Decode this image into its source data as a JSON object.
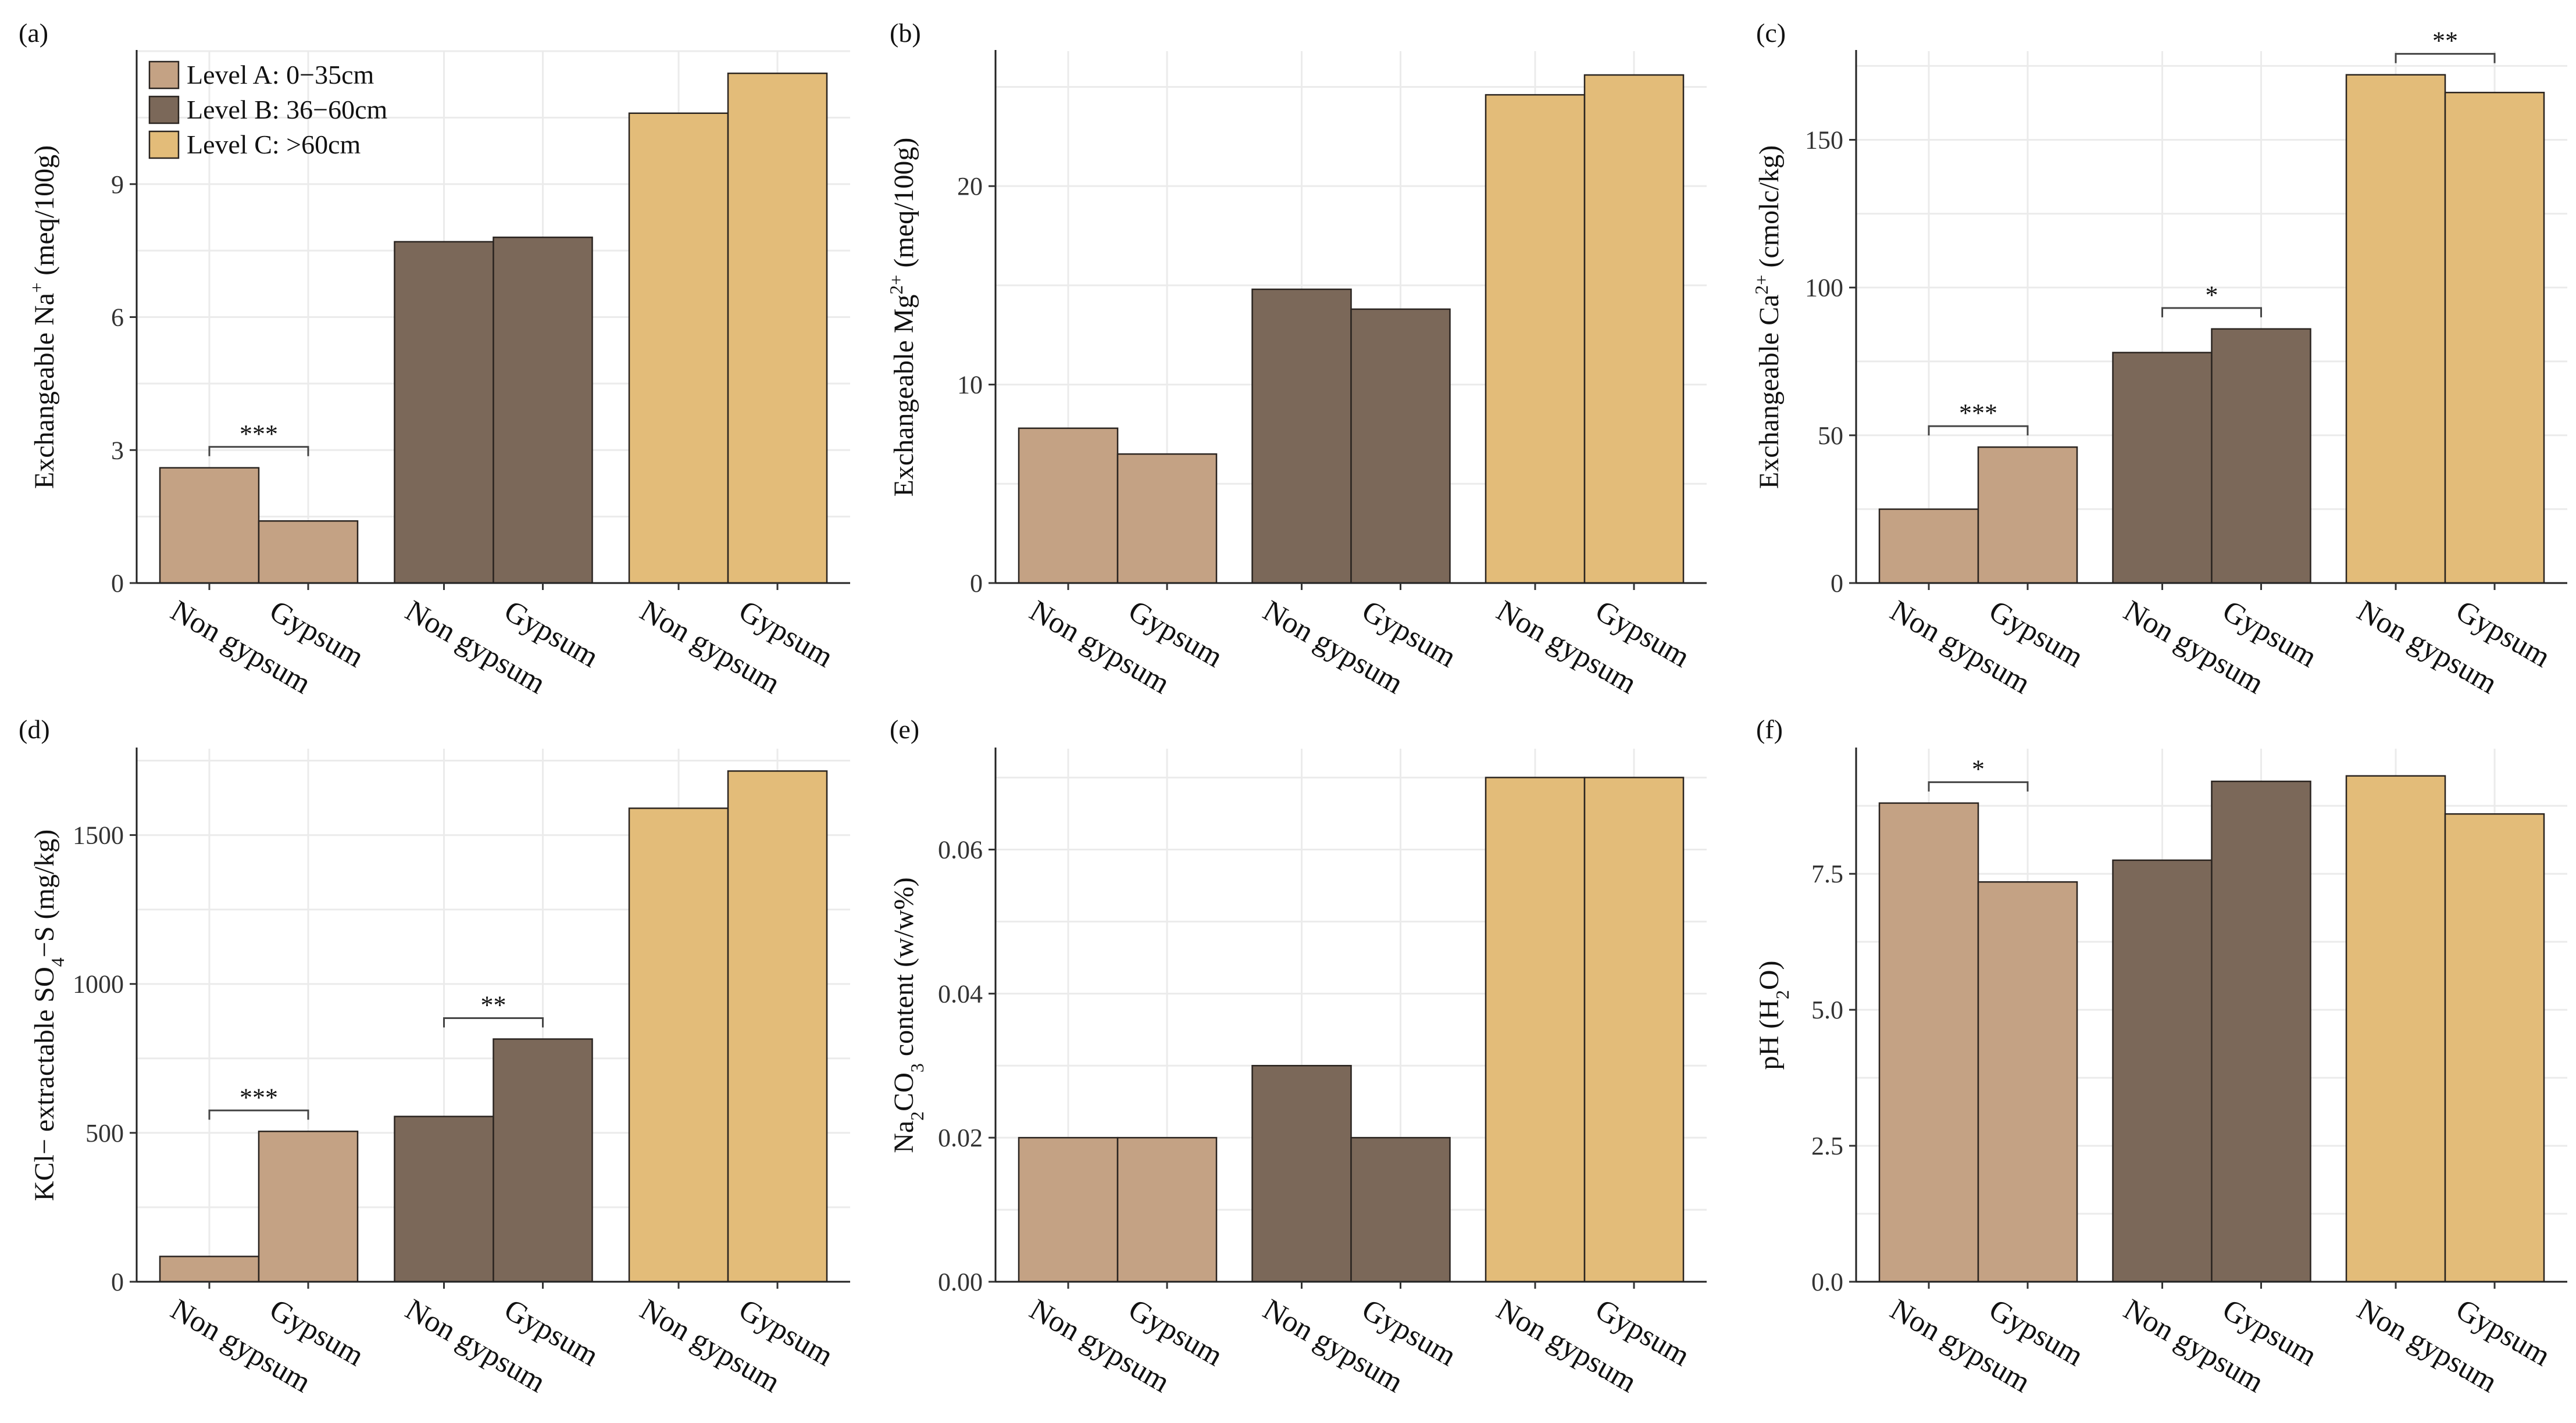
{
  "colors": {
    "level_a": "#c4a284",
    "level_b": "#7b6859",
    "level_c": "#e3bc79"
  },
  "chart_data": [
    {
      "panel": "(a)",
      "type": "bar",
      "ylabel_parts": [
        "Exchangeable Na",
        "+",
        " (meq/100g)"
      ],
      "ylim": [
        0,
        12
      ],
      "yticks": [
        0,
        3,
        6,
        9
      ],
      "categories": [
        "Non gypsum",
        "Gypsum",
        "Non gypsum",
        "Gypsum",
        "Non gypsum",
        "Gypsum"
      ],
      "groups": [
        "Level A",
        "Level A",
        "Level B",
        "Level B",
        "Level C",
        "Level C"
      ],
      "values": [
        2.6,
        1.4,
        7.7,
        7.8,
        10.6,
        11.5
      ],
      "significance": [
        {
          "group": 0,
          "label": "***"
        }
      ],
      "legend": [
        {
          "group": "Level A",
          "label": "Level A: 0−35cm"
        },
        {
          "group": "Level B",
          "label": "Level B: 36−60cm"
        },
        {
          "group": "Level C",
          "label": "Level C: >60cm"
        }
      ]
    },
    {
      "panel": "(b)",
      "type": "bar",
      "ylabel_parts": [
        "Exchangeable Mg",
        "2+",
        " (meq/100g)"
      ],
      "ylim": [
        0,
        26.8
      ],
      "yticks": [
        0,
        10,
        20
      ],
      "categories": [
        "Non gypsum",
        "Gypsum",
        "Non gypsum",
        "Gypsum",
        "Non gypsum",
        "Gypsum"
      ],
      "groups": [
        "Level A",
        "Level A",
        "Level B",
        "Level B",
        "Level C",
        "Level C"
      ],
      "values": [
        7.8,
        6.5,
        14.8,
        13.8,
        24.6,
        25.6
      ],
      "significance": []
    },
    {
      "panel": "(c)",
      "type": "bar",
      "ylabel_parts": [
        "Exchangeable Ca",
        "2+",
        " (cmolc/kg)"
      ],
      "ylim": [
        0,
        180
      ],
      "yticks": [
        0,
        50,
        100,
        150
      ],
      "categories": [
        "Non gypsum",
        "Gypsum",
        "Non gypsum",
        "Gypsum",
        "Non gypsum",
        "Gypsum"
      ],
      "groups": [
        "Level A",
        "Level A",
        "Level B",
        "Level B",
        "Level C",
        "Level C"
      ],
      "values": [
        25,
        46,
        78,
        86,
        172,
        166
      ],
      "significance": [
        {
          "group": 0,
          "label": "***"
        },
        {
          "group": 1,
          "label": "*"
        },
        {
          "group": 2,
          "label": "**"
        }
      ]
    },
    {
      "panel": "(d)",
      "type": "bar",
      "ylabel_parts": [
        "KCl− extractable SO",
        "4",
        "−S (mg/kg)"
      ],
      "ylabel_sub": true,
      "ylim": [
        0,
        1790
      ],
      "yticks": [
        0,
        500,
        1000,
        1500
      ],
      "categories": [
        "Non gypsum",
        "Gypsum",
        "Non gypsum",
        "Gypsum",
        "Non gypsum",
        "Gypsum"
      ],
      "groups": [
        "Level A",
        "Level A",
        "Level B",
        "Level B",
        "Level C",
        "Level C"
      ],
      "values": [
        85,
        505,
        555,
        815,
        1590,
        1715
      ],
      "significance": [
        {
          "group": 0,
          "label": "***"
        },
        {
          "group": 1,
          "label": "**"
        }
      ]
    },
    {
      "panel": "(e)",
      "type": "bar",
      "ylabel_parts": [
        "Na",
        "2",
        "CO",
        "3",
        " content (w/w%)"
      ],
      "ylabel_sub": true,
      "ylim": [
        0,
        0.074
      ],
      "yticks": [
        0.0,
        0.02,
        0.04,
        0.06
      ],
      "ytick_labels": [
        "0.00",
        "0.02",
        "0.04",
        "0.06"
      ],
      "categories": [
        "Non gypsum",
        "Gypsum",
        "Non gypsum",
        "Gypsum",
        "Non gypsum",
        "Gypsum"
      ],
      "groups": [
        "Level A",
        "Level A",
        "Level B",
        "Level B",
        "Level C",
        "Level C"
      ],
      "values": [
        0.02,
        0.02,
        0.03,
        0.02,
        0.07,
        0.07
      ],
      "significance": []
    },
    {
      "panel": "(f)",
      "type": "bar",
      "ylabel_parts": [
        "pH (H",
        "2",
        "O)"
      ],
      "ylabel_sub": true,
      "ylim": [
        0,
        9.8
      ],
      "yticks": [
        0,
        2.5,
        5.0,
        7.5
      ],
      "ytick_labels": [
        "0.0",
        "2.5",
        "5.0",
        "7.5"
      ],
      "categories": [
        "Non gypsum",
        "Gypsum",
        "Non gypsum",
        "Gypsum",
        "Non gypsum",
        "Gypsum"
      ],
      "groups": [
        "Level A",
        "Level A",
        "Level B",
        "Level B",
        "Level C",
        "Level C"
      ],
      "values": [
        8.8,
        7.35,
        7.75,
        9.2,
        9.3,
        8.6
      ],
      "significance": [
        {
          "group": 0,
          "label": "*"
        }
      ]
    }
  ]
}
